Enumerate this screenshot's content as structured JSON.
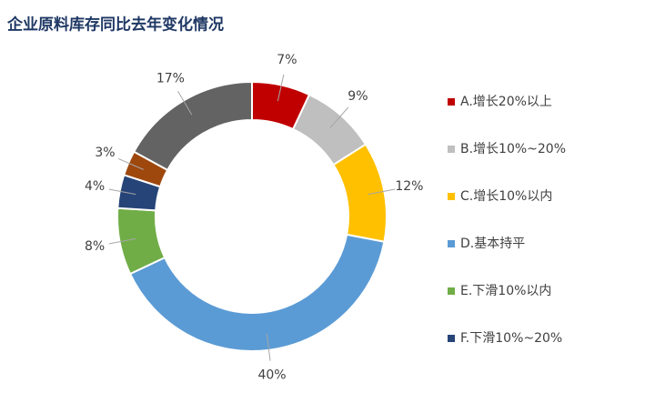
{
  "chart_data": {
    "type": "donut",
    "title": "企业原料库存同比去年变化情况",
    "categories": [
      "A.增长20%以上",
      "B.增长10%~20%",
      "C.增长10%以内",
      "D.基本持平",
      "E.下滑10%以内",
      "F.下滑10%~20%",
      null,
      null
    ],
    "values": [
      7,
      9,
      12,
      40,
      8,
      4,
      3,
      17
    ],
    "value_labels": [
      "7%",
      "9%",
      "12%",
      "40%",
      "8%",
      "4%",
      "3%",
      "17%"
    ],
    "colors": [
      "#c00000",
      "#bfbfbf",
      "#ffc000",
      "#5b9bd5",
      "#70ad47",
      "#264478",
      "#9e480e",
      "#636363"
    ],
    "legend": "right"
  }
}
